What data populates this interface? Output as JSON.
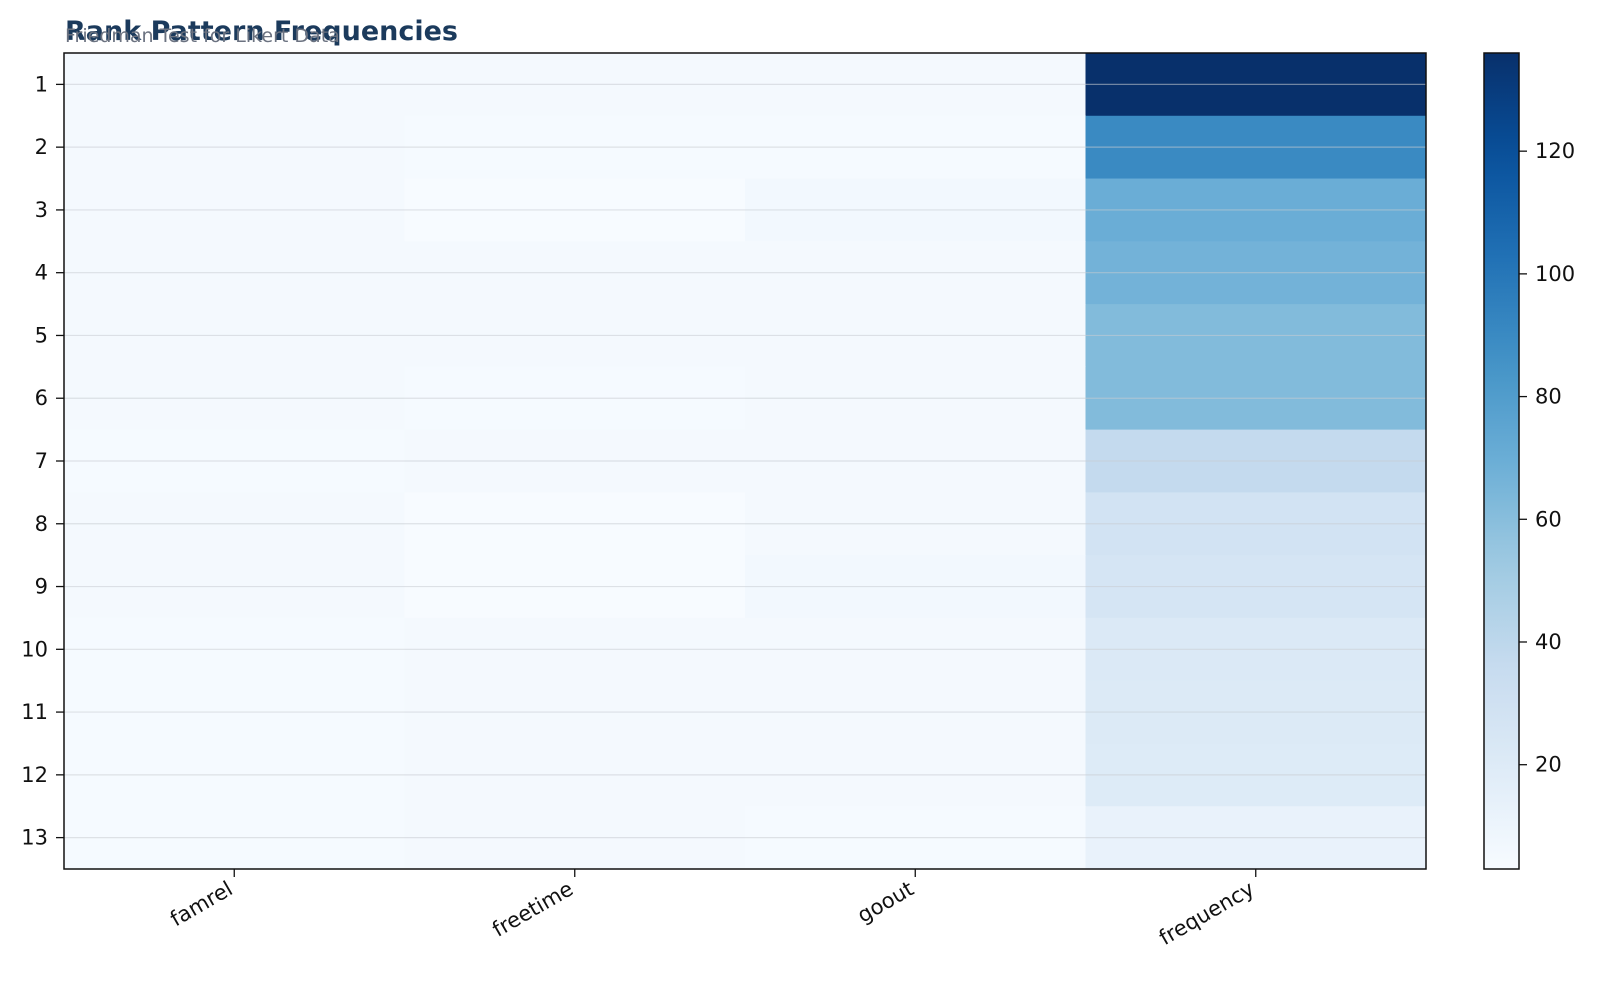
{
  "chart_data": {
    "type": "heatmap",
    "title": "Rank Pattern Frequencies",
    "subtitle": "Friedman Test for Likert Data",
    "columns": [
      "famrel",
      "freetime",
      "goout",
      "frequency"
    ],
    "rows": [
      "1",
      "2",
      "3",
      "4",
      "5",
      "6",
      "7",
      "8",
      "9",
      "10",
      "11",
      "12",
      "13"
    ],
    "values": [
      [
        5,
        5,
        5,
        136
      ],
      [
        5,
        4,
        4,
        90
      ],
      [
        5,
        3,
        6,
        70
      ],
      [
        5,
        5,
        5,
        67
      ],
      [
        5,
        5,
        5,
        62
      ],
      [
        5,
        4,
        5,
        62
      ],
      [
        4,
        5,
        5,
        37
      ],
      [
        5,
        3,
        5,
        28
      ],
      [
        5,
        3,
        6,
        26
      ],
      [
        4,
        5,
        5,
        22
      ],
      [
        4,
        5,
        5,
        21
      ],
      [
        4,
        5,
        5,
        20
      ],
      [
        4,
        5,
        4,
        12
      ]
    ],
    "colorbar": {
      "min": 3,
      "max": 136,
      "ticks": [
        20,
        40,
        60,
        80,
        100,
        120
      ]
    },
    "colormap": "Blues",
    "grid": true
  },
  "colors": {
    "title": "#1b3a5c",
    "subtitle": "#6b7280",
    "axis": "#111111"
  }
}
